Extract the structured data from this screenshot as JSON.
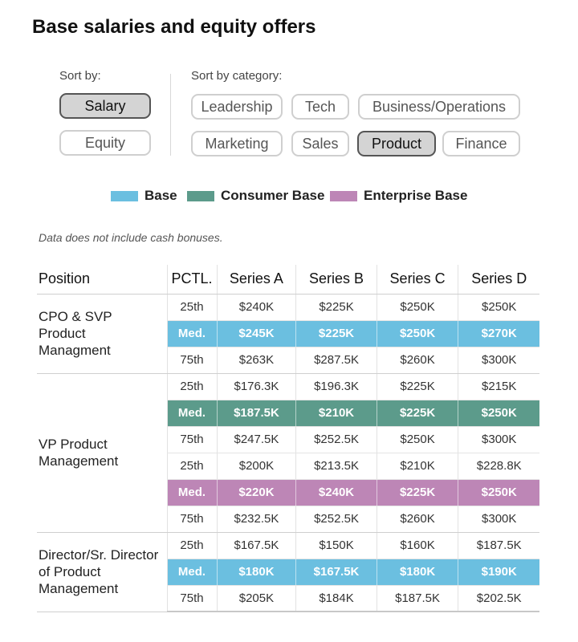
{
  "title": "Base salaries and equity offers",
  "sort_by": {
    "label": "Sort by:",
    "options": [
      "Salary",
      "Equity"
    ],
    "selected": "Salary"
  },
  "sort_category": {
    "label": "Sort by category:",
    "row1": [
      "Leadership",
      "Tech",
      "Business/Operations"
    ],
    "row2": [
      "Marketing",
      "Sales",
      "Product",
      "Finance"
    ],
    "selected": "Product"
  },
  "legend": [
    {
      "label": "Base",
      "color": "#6bbfe0"
    },
    {
      "label": "Consumer Base",
      "color": "#5c9b8b"
    },
    {
      "label": "Enterprise Base",
      "color": "#bd86b6"
    }
  ],
  "note": "Data does not include cash bonuses.",
  "table": {
    "headers": [
      "Position",
      "PCTL.",
      "Series A",
      "Series B",
      "Series C",
      "Series D"
    ],
    "groups": [
      {
        "position": "CPO & SVP Product Managment",
        "rows": [
          {
            "pctl": "25th",
            "values": [
              "$240K",
              "$225K",
              "$250K",
              "$250K"
            ],
            "highlight": null
          },
          {
            "pctl": "Med.",
            "values": [
              "$245K",
              "$225K",
              "$250K",
              "$270K"
            ],
            "highlight": "#6bbfe0"
          },
          {
            "pctl": "75th",
            "values": [
              "$263K",
              "$287.5K",
              "$260K",
              "$300K"
            ],
            "highlight": null
          }
        ]
      },
      {
        "position": "VP Product Management",
        "rows": [
          {
            "pctl": "25th",
            "values": [
              "$176.3K",
              "$196.3K",
              "$225K",
              "$215K"
            ],
            "highlight": null
          },
          {
            "pctl": "Med.",
            "values": [
              "$187.5K",
              "$210K",
              "$225K",
              "$250K"
            ],
            "highlight": "#5c9b8b"
          },
          {
            "pctl": "75th",
            "values": [
              "$247.5K",
              "$252.5K",
              "$250K",
              "$300K"
            ],
            "highlight": null
          },
          {
            "pctl": "25th",
            "values": [
              "$200K",
              "$213.5K",
              "$210K",
              "$228.8K"
            ],
            "highlight": null
          },
          {
            "pctl": "Med.",
            "values": [
              "$220K",
              "$240K",
              "$225K",
              "$250K"
            ],
            "highlight": "#bd86b6"
          },
          {
            "pctl": "75th",
            "values": [
              "$232.5K",
              "$252.5K",
              "$260K",
              "$300K"
            ],
            "highlight": null
          }
        ]
      },
      {
        "position": "Director/Sr. Director of Product Management",
        "rows": [
          {
            "pctl": "25th",
            "values": [
              "$167.5K",
              "$150K",
              "$160K",
              "$187.5K"
            ],
            "highlight": null
          },
          {
            "pctl": "Med.",
            "values": [
              "$180K",
              "$167.5K",
              "$180K",
              "$190K"
            ],
            "highlight": "#6bbfe0"
          },
          {
            "pctl": "75th",
            "values": [
              "$205K",
              "$184K",
              "$187.5K",
              "$202.5K"
            ],
            "highlight": null
          }
        ]
      }
    ]
  }
}
